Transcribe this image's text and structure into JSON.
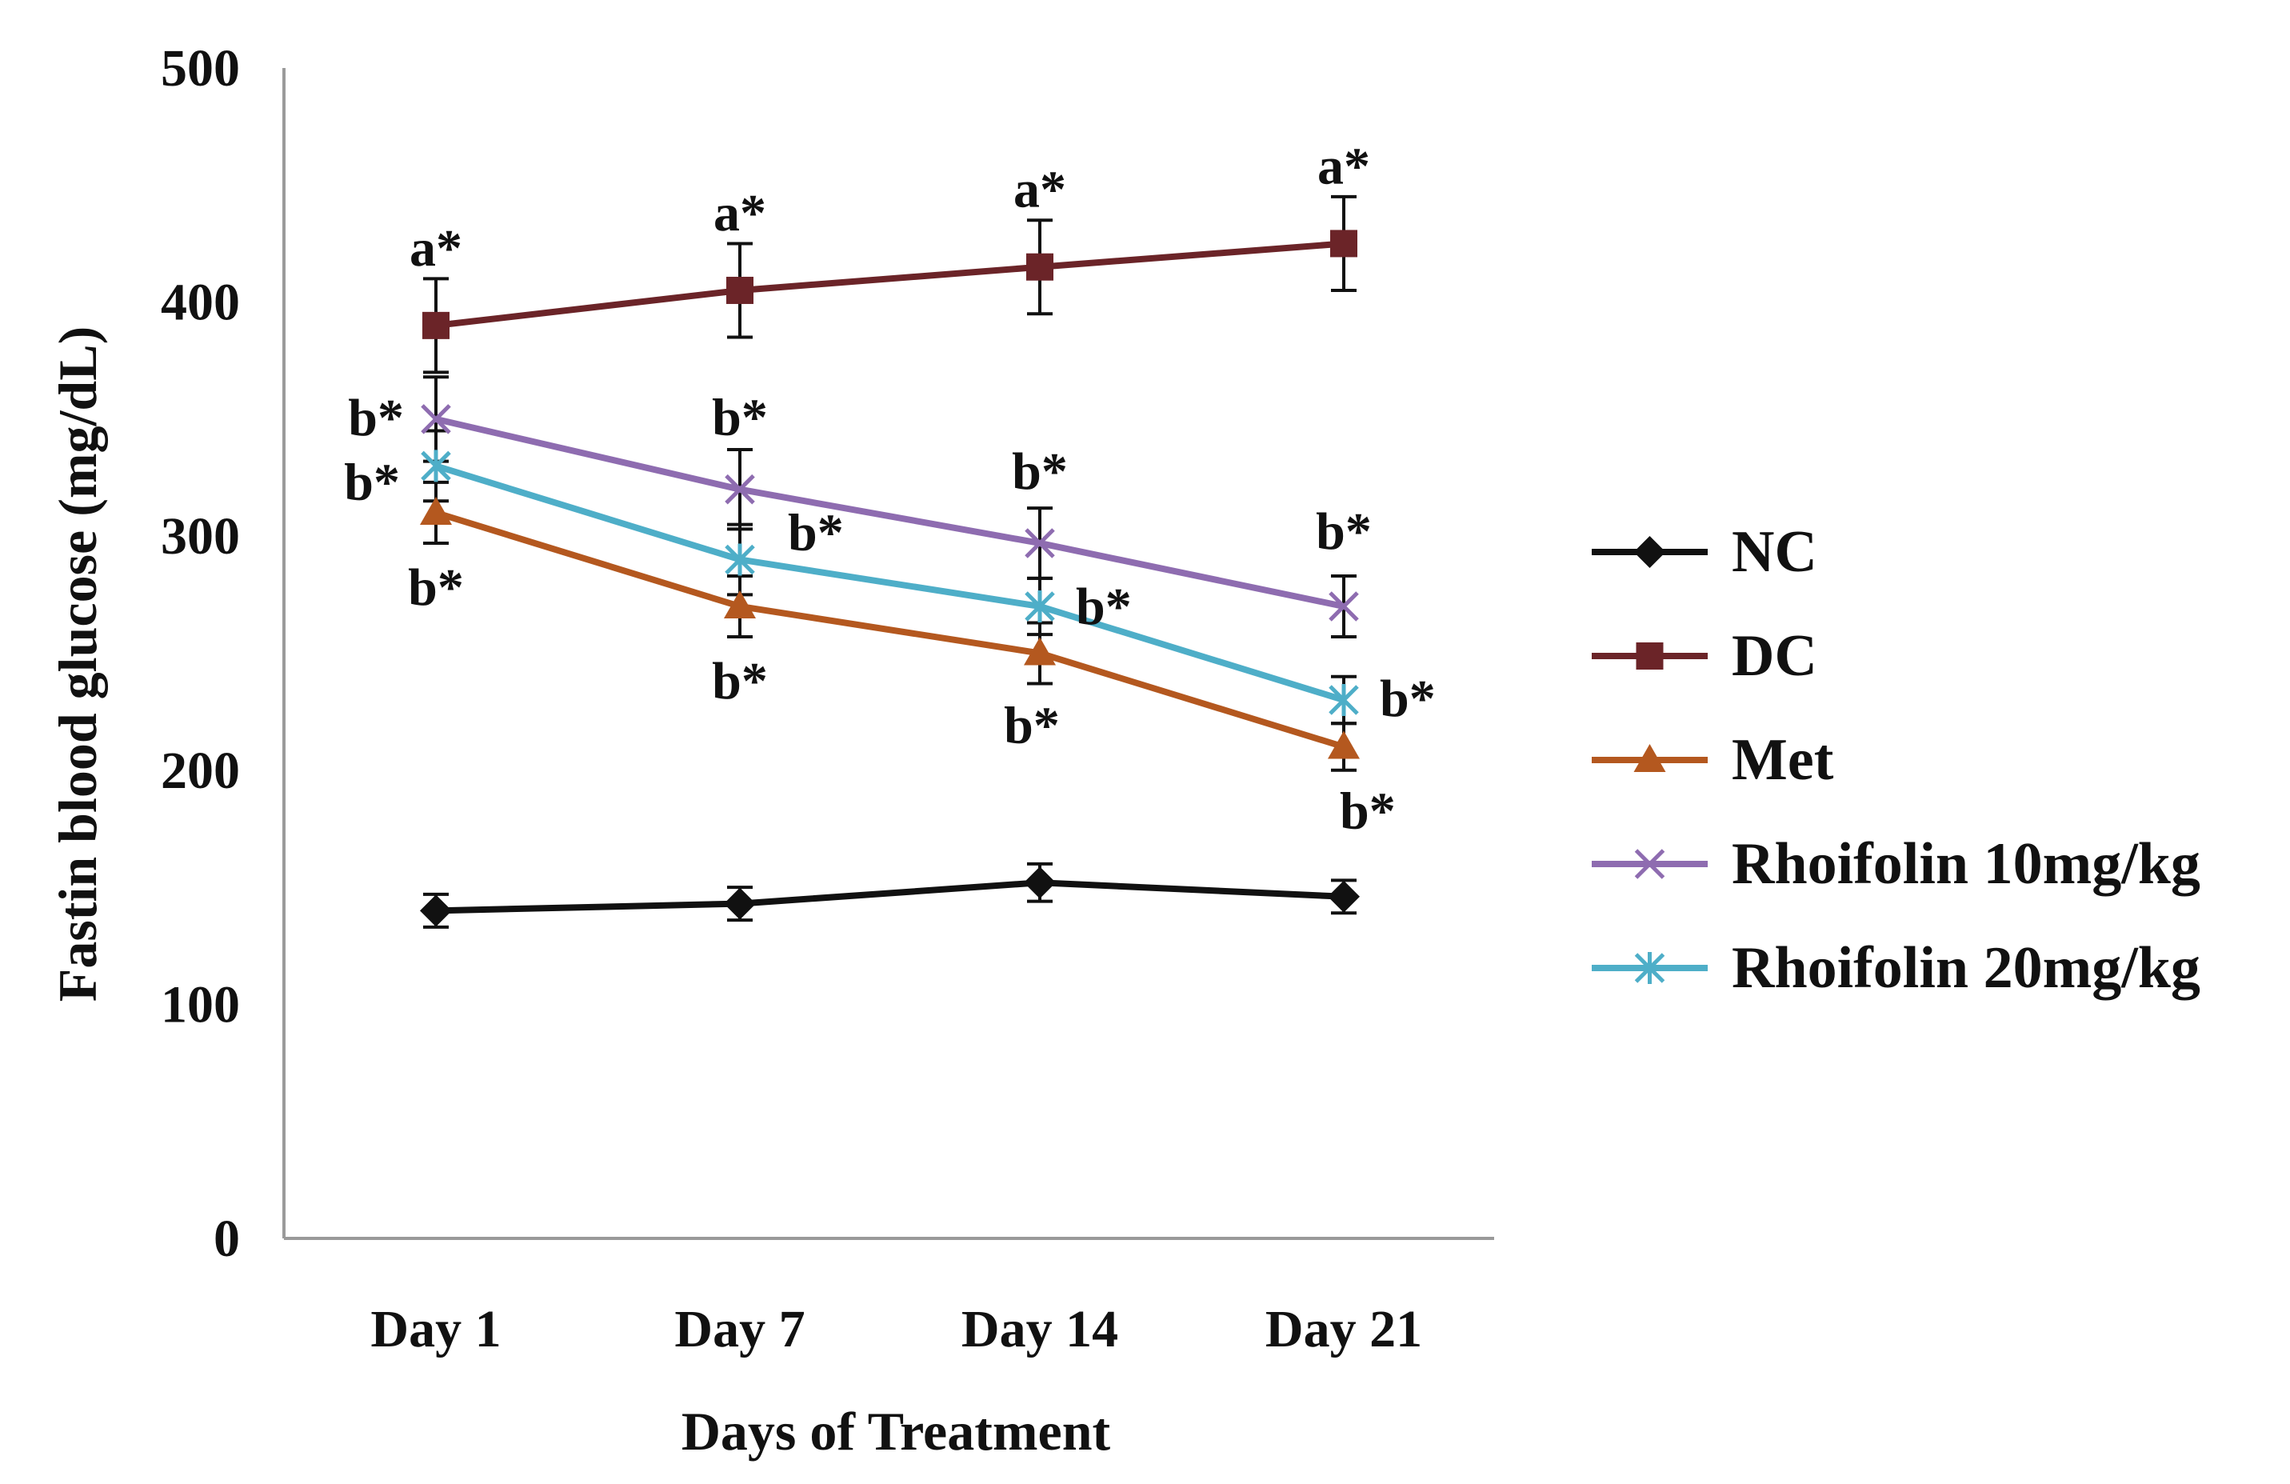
{
  "chart_data": {
    "type": "line",
    "title": "",
    "xlabel": "Days of Treatment",
    "ylabel": "Fastin blood glucose (mg/dL)",
    "ylim": [
      0,
      500
    ],
    "yticks": [
      0,
      100,
      200,
      300,
      400,
      500
    ],
    "ytick_labels": [
      "0",
      "100",
      "200",
      "300",
      "400",
      "500"
    ],
    "categories": [
      "Day 1",
      "Day 7",
      "Day 14",
      "Day 21"
    ],
    "legend_position": "right",
    "series": [
      {
        "name": "NC",
        "color": "#111111",
        "marker": "diamond",
        "values": [
          140,
          143,
          152,
          146
        ],
        "errors": [
          7,
          7,
          8,
          7
        ],
        "labels": [
          "",
          "",
          "",
          ""
        ]
      },
      {
        "name": "DC",
        "color": "#6b2428",
        "marker": "square",
        "values": [
          390,
          405,
          415,
          425
        ],
        "errors": [
          20,
          20,
          20,
          20
        ],
        "labels": [
          "a*",
          "a*",
          "a*",
          "a*"
        ]
      },
      {
        "name": "Met",
        "color": "#b4581f",
        "marker": "triangle",
        "values": [
          310,
          270,
          250,
          210
        ],
        "errors": [
          13,
          13,
          13,
          10
        ],
        "labels": [
          "b*",
          "b*",
          "b*",
          "b*"
        ]
      },
      {
        "name": "Rhoifolin 10mg/kg",
        "color": "#8e6cb0",
        "marker": "x",
        "values": [
          350,
          320,
          297,
          270
        ],
        "errors": [
          18,
          17,
          15,
          13
        ],
        "labels": [
          "b*",
          "b*",
          "b*",
          "b*"
        ]
      },
      {
        "name": "Rhoifolin 20mg/kg",
        "color": "#4eaec8",
        "marker": "asterisk",
        "values": [
          330,
          290,
          270,
          230
        ],
        "errors": [
          15,
          15,
          12,
          10
        ],
        "labels": [
          "b*",
          "b*",
          "b*",
          "b*"
        ]
      }
    ]
  }
}
